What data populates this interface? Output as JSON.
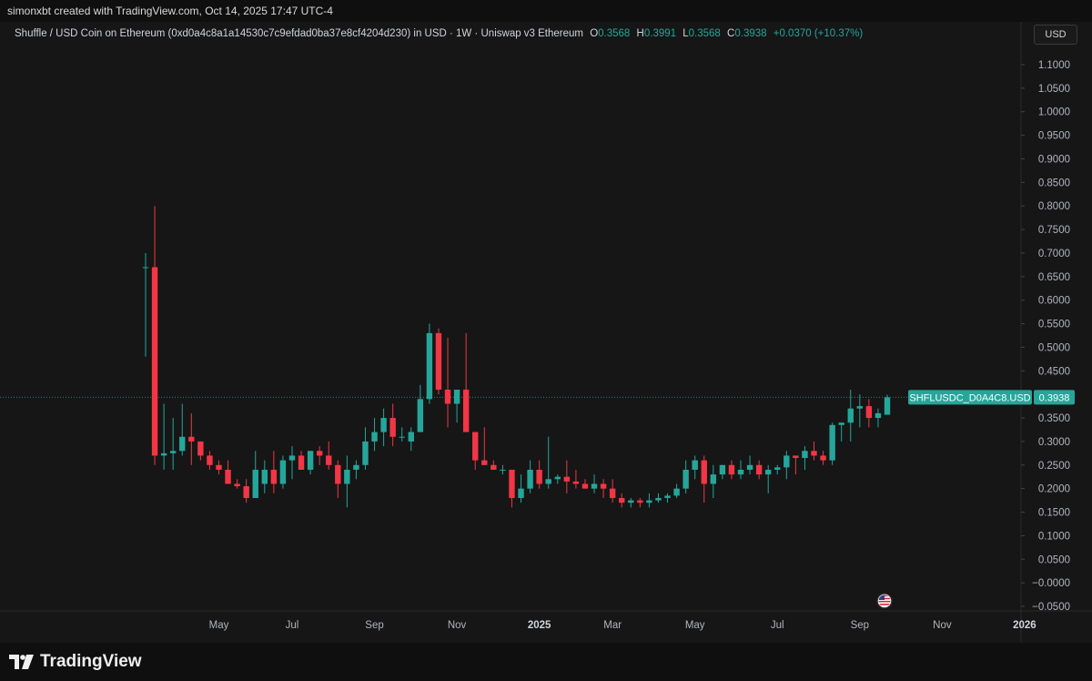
{
  "header": {
    "caption": "simonxbt created with TradingView.com, Oct 14, 2025 17:47 UTC-4"
  },
  "legend": {
    "symbol": "Shuffle / USD Coin on Ethereum (0xd0a4c8a1a14530c7c9efdad0ba37e8cf4204d230) in USD · 1W · Uniswap v3 Ethereum",
    "o_label": "O",
    "o_value": "0.3568",
    "h_label": "H",
    "h_value": "0.3991",
    "l_label": "L",
    "l_value": "0.3568",
    "c_label": "C",
    "c_value": "0.3938",
    "change": "+0.0370 (+10.37%)"
  },
  "currency_button": "USD",
  "price_tag": {
    "symbol": "SHFLUSDC_D0A4C8.USD",
    "value": "0.3938"
  },
  "brand": {
    "name": "TradingView"
  },
  "colors": {
    "up": "#26a69a",
    "down": "#f23645",
    "background": "#161616",
    "axis_text": "#b2b5be",
    "tag_bg": "#26a69a"
  },
  "icons": {
    "event_marker": "us-flag-icon",
    "logo": "tradingview-logo-icon"
  },
  "chart_data": {
    "type": "candlestick",
    "timeframe": "1W",
    "y_ticks": [
      "1.1000",
      "1.0500",
      "1.0000",
      "0.9500",
      "0.9000",
      "0.8500",
      "0.8000",
      "0.7500",
      "0.7000",
      "0.6500",
      "0.6000",
      "0.5500",
      "0.5000",
      "0.4500",
      "0.4000",
      "0.3500",
      "0.3000",
      "0.2500",
      "0.2000",
      "0.1500",
      "0.1000",
      "0.0500",
      "−0.0000",
      "−0.0500"
    ],
    "x_ticks": [
      {
        "label": "May",
        "week": 8
      },
      {
        "label": "Jul",
        "week": 16
      },
      {
        "label": "Sep",
        "week": 25
      },
      {
        "label": "Nov",
        "week": 34
      },
      {
        "label": "2025",
        "week": 43
      },
      {
        "label": "Mar",
        "week": 51
      },
      {
        "label": "May",
        "week": 60
      },
      {
        "label": "Jul",
        "week": 69
      },
      {
        "label": "Sep",
        "week": 78
      },
      {
        "label": "Nov",
        "week": 87
      },
      {
        "label": "2026",
        "week": 96
      }
    ],
    "ylim": [
      -0.07,
      1.12
    ],
    "xlim": [
      -0.5,
      100.5
    ],
    "last_price": 0.3938,
    "candles": [
      [
        0,
        0.67,
        0.7,
        0.48,
        0.67
      ],
      [
        1,
        0.67,
        0.8,
        0.25,
        0.27
      ],
      [
        2,
        0.27,
        0.38,
        0.24,
        0.275
      ],
      [
        3,
        0.275,
        0.35,
        0.24,
        0.28
      ],
      [
        4,
        0.28,
        0.38,
        0.27,
        0.31
      ],
      [
        5,
        0.31,
        0.36,
        0.25,
        0.3
      ],
      [
        6,
        0.3,
        0.3,
        0.26,
        0.27
      ],
      [
        7,
        0.27,
        0.28,
        0.24,
        0.25
      ],
      [
        8,
        0.25,
        0.26,
        0.23,
        0.24
      ],
      [
        9,
        0.24,
        0.26,
        0.21,
        0.21
      ],
      [
        10,
        0.21,
        0.22,
        0.2,
        0.205
      ],
      [
        11,
        0.205,
        0.22,
        0.17,
        0.18
      ],
      [
        12,
        0.18,
        0.28,
        0.18,
        0.24
      ],
      [
        13,
        0.21,
        0.26,
        0.19,
        0.24
      ],
      [
        14,
        0.24,
        0.28,
        0.19,
        0.21
      ],
      [
        15,
        0.21,
        0.27,
        0.2,
        0.26
      ],
      [
        16,
        0.26,
        0.29,
        0.22,
        0.27
      ],
      [
        17,
        0.27,
        0.28,
        0.24,
        0.24
      ],
      [
        18,
        0.24,
        0.28,
        0.23,
        0.28
      ],
      [
        19,
        0.28,
        0.29,
        0.25,
        0.27
      ],
      [
        20,
        0.27,
        0.3,
        0.24,
        0.25
      ],
      [
        21,
        0.25,
        0.26,
        0.18,
        0.21
      ],
      [
        22,
        0.21,
        0.27,
        0.16,
        0.24
      ],
      [
        23,
        0.24,
        0.26,
        0.22,
        0.25
      ],
      [
        24,
        0.25,
        0.33,
        0.24,
        0.3
      ],
      [
        25,
        0.3,
        0.35,
        0.28,
        0.32
      ],
      [
        26,
        0.32,
        0.37,
        0.29,
        0.35
      ],
      [
        27,
        0.35,
        0.38,
        0.29,
        0.31
      ],
      [
        28,
        0.31,
        0.33,
        0.3,
        0.31
      ],
      [
        29,
        0.3,
        0.33,
        0.28,
        0.32
      ],
      [
        30,
        0.32,
        0.42,
        0.32,
        0.39
      ],
      [
        31,
        0.39,
        0.55,
        0.38,
        0.53
      ],
      [
        32,
        0.53,
        0.54,
        0.4,
        0.41
      ],
      [
        33,
        0.41,
        0.52,
        0.33,
        0.38
      ],
      [
        34,
        0.38,
        0.41,
        0.34,
        0.41
      ],
      [
        35,
        0.41,
        0.53,
        0.32,
        0.32
      ],
      [
        36,
        0.32,
        0.32,
        0.24,
        0.26
      ],
      [
        37,
        0.26,
        0.33,
        0.25,
        0.25
      ],
      [
        38,
        0.25,
        0.26,
        0.24,
        0.24
      ],
      [
        39,
        0.24,
        0.25,
        0.23,
        0.24
      ],
      [
        40,
        0.24,
        0.24,
        0.16,
        0.18
      ],
      [
        41,
        0.18,
        0.23,
        0.17,
        0.2
      ],
      [
        42,
        0.2,
        0.26,
        0.19,
        0.24
      ],
      [
        43,
        0.24,
        0.26,
        0.2,
        0.21
      ],
      [
        44,
        0.21,
        0.31,
        0.2,
        0.22
      ],
      [
        45,
        0.22,
        0.23,
        0.21,
        0.225
      ],
      [
        46,
        0.225,
        0.26,
        0.19,
        0.215
      ],
      [
        47,
        0.215,
        0.24,
        0.2,
        0.21
      ],
      [
        48,
        0.21,
        0.22,
        0.2,
        0.2
      ],
      [
        49,
        0.2,
        0.23,
        0.19,
        0.21
      ],
      [
        50,
        0.21,
        0.22,
        0.18,
        0.2
      ],
      [
        51,
        0.2,
        0.22,
        0.17,
        0.18
      ],
      [
        52,
        0.18,
        0.19,
        0.16,
        0.17
      ],
      [
        53,
        0.17,
        0.18,
        0.16,
        0.175
      ],
      [
        54,
        0.175,
        0.18,
        0.16,
        0.17
      ],
      [
        55,
        0.17,
        0.19,
        0.16,
        0.175
      ],
      [
        56,
        0.175,
        0.19,
        0.17,
        0.18
      ],
      [
        57,
        0.18,
        0.19,
        0.17,
        0.185
      ],
      [
        58,
        0.185,
        0.21,
        0.18,
        0.2
      ],
      [
        59,
        0.2,
        0.26,
        0.19,
        0.24
      ],
      [
        60,
        0.24,
        0.27,
        0.22,
        0.26
      ],
      [
        61,
        0.26,
        0.27,
        0.17,
        0.21
      ],
      [
        62,
        0.21,
        0.25,
        0.18,
        0.23
      ],
      [
        63,
        0.23,
        0.25,
        0.22,
        0.25
      ],
      [
        64,
        0.25,
        0.26,
        0.22,
        0.23
      ],
      [
        65,
        0.23,
        0.26,
        0.22,
        0.24
      ],
      [
        66,
        0.24,
        0.27,
        0.23,
        0.25
      ],
      [
        67,
        0.25,
        0.26,
        0.22,
        0.23
      ],
      [
        68,
        0.23,
        0.25,
        0.19,
        0.24
      ],
      [
        69,
        0.24,
        0.25,
        0.23,
        0.245
      ],
      [
        70,
        0.245,
        0.28,
        0.22,
        0.27
      ],
      [
        71,
        0.27,
        0.27,
        0.23,
        0.265
      ],
      [
        72,
        0.265,
        0.29,
        0.24,
        0.28
      ],
      [
        73,
        0.28,
        0.3,
        0.26,
        0.27
      ],
      [
        74,
        0.27,
        0.28,
        0.25,
        0.26
      ],
      [
        75,
        0.26,
        0.34,
        0.25,
        0.335
      ],
      [
        76,
        0.335,
        0.34,
        0.3,
        0.34
      ],
      [
        77,
        0.34,
        0.41,
        0.3,
        0.37
      ],
      [
        78,
        0.37,
        0.4,
        0.33,
        0.375
      ],
      [
        79,
        0.375,
        0.39,
        0.33,
        0.35
      ],
      [
        80,
        0.35,
        0.37,
        0.33,
        0.36
      ],
      [
        81,
        0.3568,
        0.3991,
        0.3568,
        0.3938
      ]
    ]
  }
}
